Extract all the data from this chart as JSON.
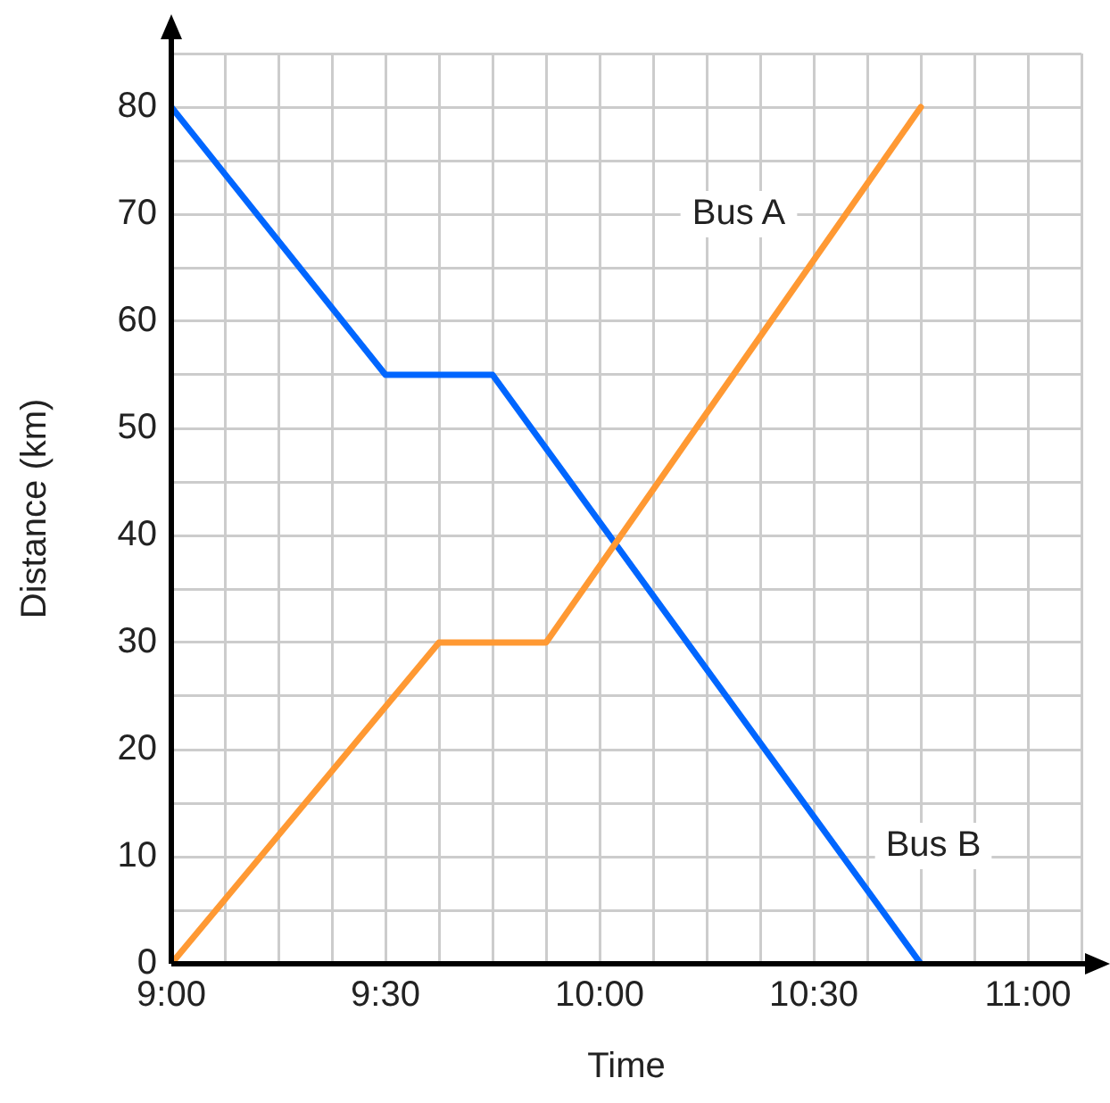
{
  "chart_data": {
    "type": "line",
    "xlabel": "Time",
    "ylabel": "Distance (km)",
    "xlim": [
      9,
      11.125
    ],
    "ylim": [
      0,
      85
    ],
    "xticks": [
      {
        "value": 9,
        "label": "9:00"
      },
      {
        "value": 9.125,
        "label": null
      },
      {
        "value": 9.25,
        "label": null
      },
      {
        "value": 9.375,
        "label": null
      },
      {
        "value": 9.5,
        "label": "9:30"
      },
      {
        "value": 9.625,
        "label": null
      },
      {
        "value": 9.75,
        "label": null
      },
      {
        "value": 9.875,
        "label": null
      },
      {
        "value": 10,
        "label": "10:00"
      },
      {
        "value": 10.125,
        "label": null
      },
      {
        "value": 10.25,
        "label": null
      },
      {
        "value": 10.375,
        "label": null
      },
      {
        "value": 10.5,
        "label": "10:30"
      },
      {
        "value": 10.625,
        "label": null
      },
      {
        "value": 10.75,
        "label": null
      },
      {
        "value": 10.875,
        "label": null
      },
      {
        "value": 11,
        "label": "11:00"
      },
      {
        "value": 11.125,
        "label": null
      }
    ],
    "yticks": [
      0,
      {
        "value": 5,
        "label": null
      },
      10,
      {
        "value": 15,
        "label": null
      },
      20,
      {
        "value": 25,
        "label": null
      },
      30,
      {
        "value": 35,
        "label": null
      },
      40,
      {
        "value": 45,
        "label": null
      },
      50,
      {
        "value": 55,
        "label": null
      },
      60,
      {
        "value": 65,
        "label": null
      },
      70,
      {
        "value": 75,
        "label": null
      },
      80,
      {
        "value": 85,
        "label": null
      }
    ],
    "grid": true,
    "legend": false,
    "marker": "none",
    "line_style": "solid",
    "series": [
      {
        "name": "Bus A",
        "color": "#ff9933",
        "x": [
          9,
          9.625,
          9.875,
          10.75
        ],
        "values": [
          0,
          30,
          30,
          80
        ]
      },
      {
        "name": "Bus B",
        "color": "#0066ff",
        "x": [
          9,
          9.5,
          9.75,
          10.75
        ],
        "values": [
          80,
          55,
          55,
          0
        ]
      }
    ]
  }
}
